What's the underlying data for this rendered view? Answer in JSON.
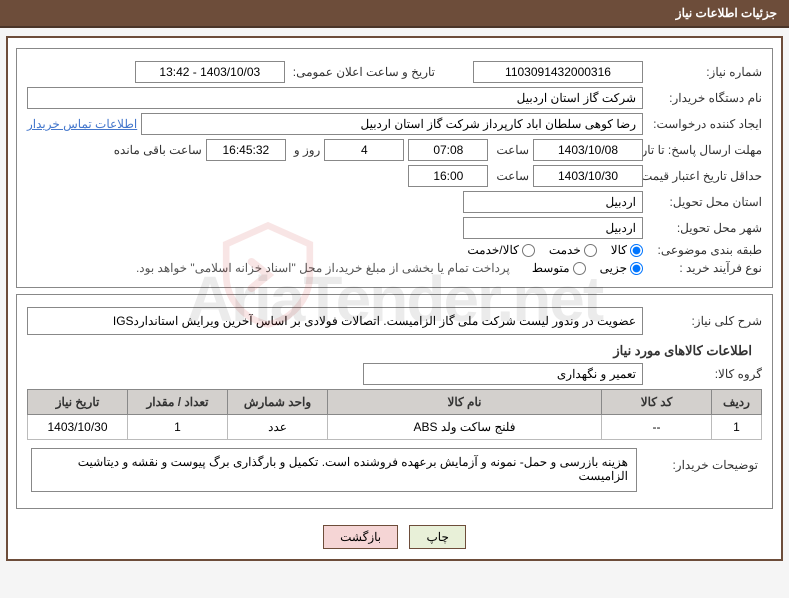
{
  "header": {
    "title": "جزئیات اطلاعات نیاز"
  },
  "watermark": {
    "text": "AriaTender.net"
  },
  "req": {
    "need_no_label": "شماره نیاز:",
    "need_no": "1103091432000316",
    "announce_label": "تاریخ و ساعت اعلان عمومی:",
    "announce_value": "1403/10/03 - 13:42",
    "buyer_org_label": "نام دستگاه خریدار:",
    "buyer_org": "شرکت گاز استان اردبیل",
    "requester_label": "ایجاد کننده درخواست:",
    "requester": "رضا کوهی سلطان اباد کارپرداز شرکت گاز استان اردبیل",
    "contact_link": "اطلاعات تماس خریدار",
    "deadline_send_label": "مهلت ارسال پاسخ: تا تاریخ:",
    "deadline_send_date": "1403/10/08",
    "time_label": "ساعت",
    "deadline_send_time": "07:08",
    "days": "4",
    "days_and": "روز و",
    "countdown": "16:45:32",
    "remain_label": "ساعت باقی مانده",
    "validity_label": "حداقل تاریخ اعتبار قیمت: تا تاریخ:",
    "validity_date": "1403/10/30",
    "validity_time": "16:00",
    "province_label": "استان محل تحویل:",
    "province": "اردبیل",
    "city_label": "شهر محل تحویل:",
    "city": "اردبیل",
    "category_label": "طبقه بندی موضوعی:",
    "cat_goods": "کالا",
    "cat_service": "خدمت",
    "cat_both": "کالا/خدمت",
    "process_label": "نوع فرآیند خرید :",
    "proc_partial": "جزیی",
    "proc_medium": "متوسط",
    "process_note": "پرداخت تمام یا بخشی از مبلغ خرید،از محل \"اسناد خزانه اسلامی\" خواهد بود."
  },
  "desc": {
    "general_label": "شرح کلی نیاز:",
    "general_text": "عضویت در وندور لیست شرکت ملی گاز الزامیست. اتصالات فولادی بر اساس آخرین ویرایش استانداردIGS",
    "goods_info_title": "اطلاعات کالاهای مورد نیاز",
    "goods_group_label": "گروه کالا:",
    "goods_group": "تعمیر و نگهداری"
  },
  "table": {
    "headers": {
      "row": "ردیف",
      "code": "کد کالا",
      "name": "نام کالا",
      "unit": "واحد شمارش",
      "qty": "تعداد / مقدار",
      "date": "تاریخ نیاز"
    },
    "rows": [
      {
        "row": "1",
        "code": "--",
        "name": "فلنج ساکت ولد ABS",
        "unit": "عدد",
        "qty": "1",
        "date": "1403/10/30"
      }
    ]
  },
  "buyer_notes": {
    "label": "توضیحات خریدار:",
    "text": "هزینه بازرسی و حمل- نمونه و آزمایش برعهده فروشنده است. تکمیل و بارگذاری برگ پیوست و نقشه و دیتاشیت الزامیست"
  },
  "buttons": {
    "print": "چاپ",
    "back": "بازگشت"
  },
  "colors": {
    "header_bg": "#6d4d3a",
    "border": "#888888",
    "th_bg": "#d3d0cd",
    "link": "#4477cc",
    "btn_print_bg": "#e8f0d8",
    "btn_back_bg": "#f5d5d5"
  }
}
